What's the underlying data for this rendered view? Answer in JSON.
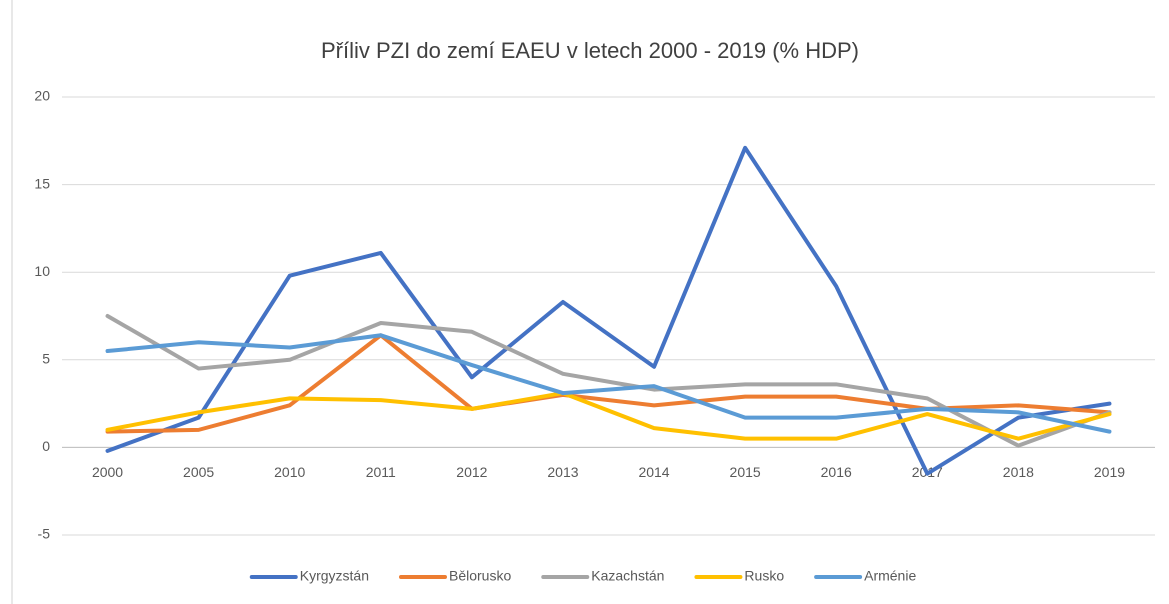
{
  "chart_data": {
    "type": "line",
    "title": "Příliv PZI do zemí EAEU v letech 2000 - 2019 (% HDP)",
    "categories": [
      "2000",
      "2005",
      "2010",
      "2011",
      "2012",
      "2013",
      "2014",
      "2015",
      "2016",
      "2017",
      "2018",
      "2019"
    ],
    "series": [
      {
        "name": "Kyrgyzstán",
        "color": "#4472c4",
        "values": [
          -0.2,
          1.7,
          9.8,
          11.1,
          4.0,
          8.3,
          4.6,
          17.1,
          9.2,
          -1.5,
          1.7,
          2.5
        ]
      },
      {
        "name": "Bělorusko",
        "color": "#ed7d31",
        "values": [
          0.9,
          1.0,
          2.4,
          6.4,
          2.2,
          3.0,
          2.4,
          2.9,
          2.9,
          2.2,
          2.4,
          2.0
        ]
      },
      {
        "name": "Kazachstán",
        "color": "#a5a5a5",
        "values": [
          7.5,
          4.5,
          5.0,
          7.1,
          6.6,
          4.2,
          3.3,
          3.6,
          3.6,
          2.8,
          0.1,
          2.0
        ]
      },
      {
        "name": "Rusko",
        "color": "#ffc000",
        "values": [
          1.0,
          2.0,
          2.8,
          2.7,
          2.2,
          3.1,
          1.1,
          0.5,
          0.5,
          1.9,
          0.5,
          1.9
        ]
      },
      {
        "name": "Arménie",
        "color": "#5b9bd5",
        "values": [
          5.5,
          6.0,
          5.7,
          6.4,
          4.7,
          3.1,
          3.5,
          1.7,
          1.7,
          2.2,
          2.0,
          0.9
        ]
      }
    ],
    "ylim": [
      -5,
      20
    ],
    "yticks": [
      -5,
      0,
      5,
      10,
      15,
      20
    ],
    "grid": true,
    "legend": "bottom"
  }
}
